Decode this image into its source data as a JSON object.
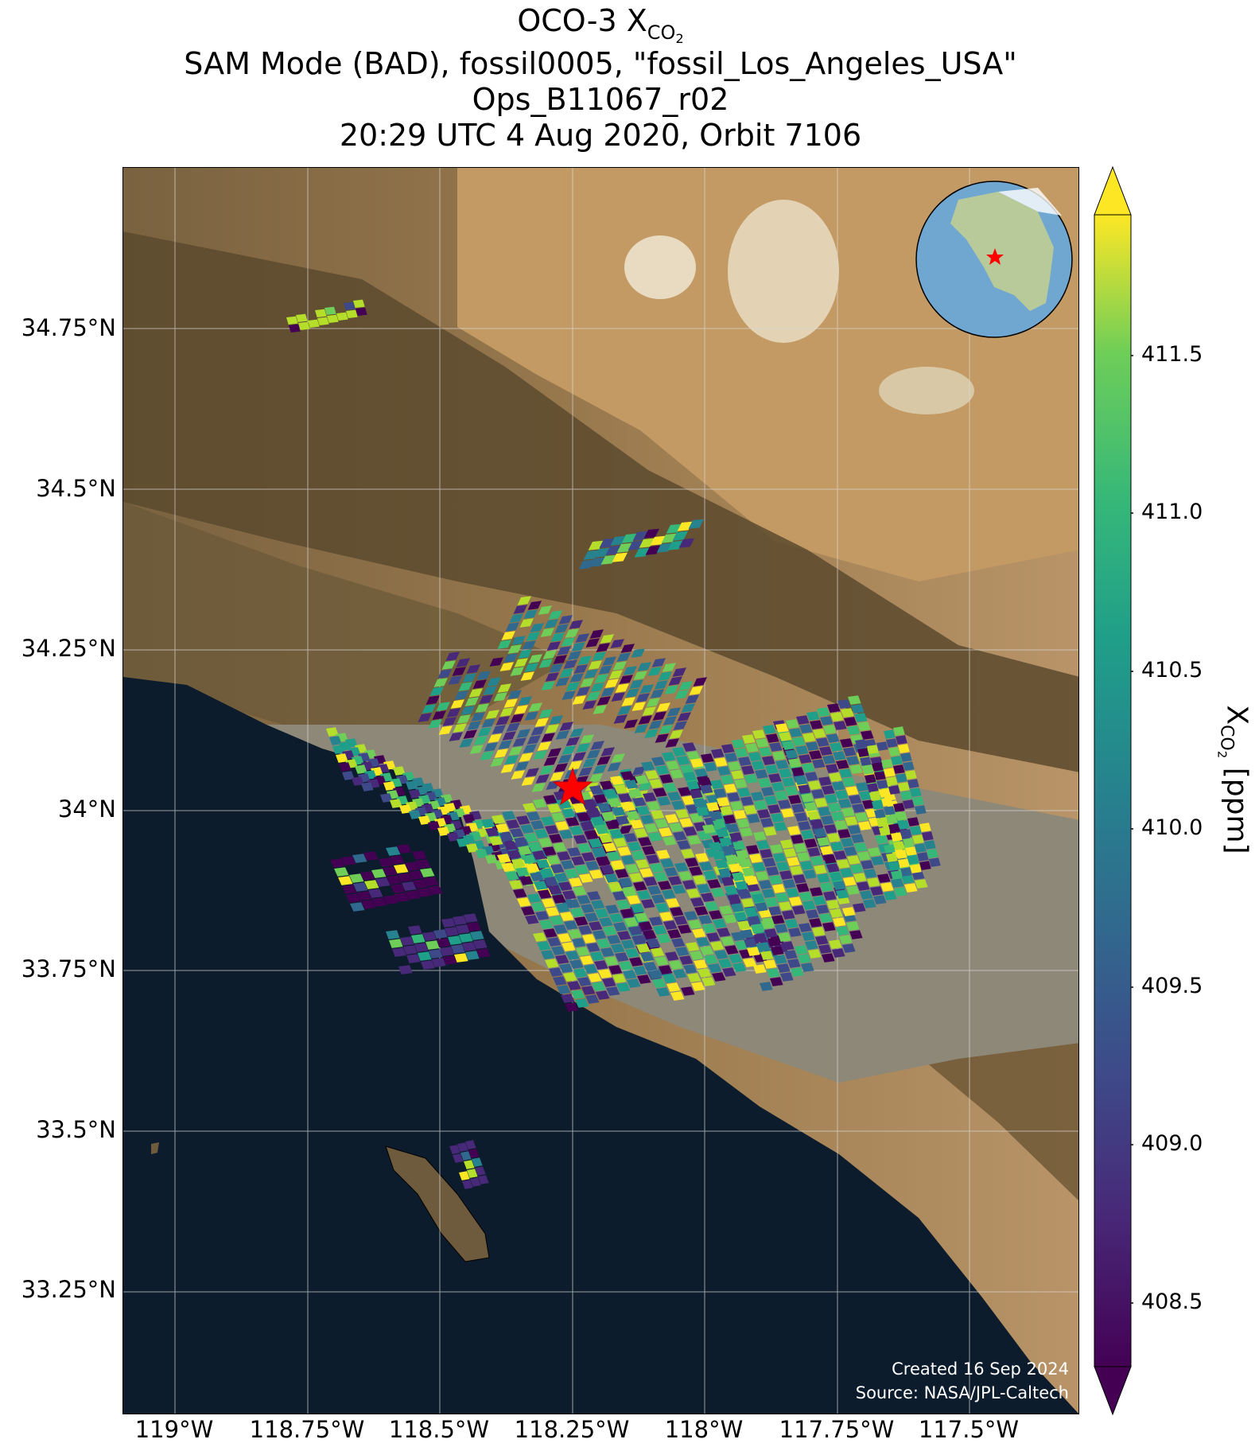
{
  "title": {
    "line1_prefix": "OCO-3 X",
    "line1_sub": "CO",
    "line1_subsub": "2",
    "line2": "SAM Mode (BAD), fossil0005, \"fossil_Los_Angeles_USA\"",
    "line3": "Ops_B11067_r02",
    "line4": "20:29 UTC 4 Aug 2020, Orbit 7106"
  },
  "latitude_labels": [
    "34.75°N",
    "34.5°N",
    "34.25°N",
    "34°N",
    "33.75°N",
    "33.5°N",
    "33.25°N"
  ],
  "longitude_labels": [
    "119°W",
    "118.75°W",
    "118.5°W",
    "118.25°W",
    "118°W",
    "117.75°W",
    "117.5°W"
  ],
  "colorbar": {
    "label_prefix": "X",
    "label_sub": "CO",
    "label_subsub": "2",
    "label_suffix": " [ppm]",
    "ticks": [
      "411.5",
      "411.0",
      "410.5",
      "410.0",
      "409.5",
      "409.0",
      "408.5"
    ],
    "colormap": "viridis",
    "range": [
      408.35,
      411.95
    ],
    "extend": "both"
  },
  "credit": {
    "line1": "Created 16 Sep 2024",
    "line2": "Source: NASA/JPL-Caltech"
  },
  "target_marker": {
    "lat": 34.05,
    "lon": -118.25,
    "color": "#ff0000",
    "symbol": "star"
  },
  "colors": {
    "ocean": "#0c1c2c",
    "land_desert": "#b08a5c",
    "mountain": "#6b5a3a",
    "urban": "#8c8576",
    "grid": "#d8d8d8"
  }
}
